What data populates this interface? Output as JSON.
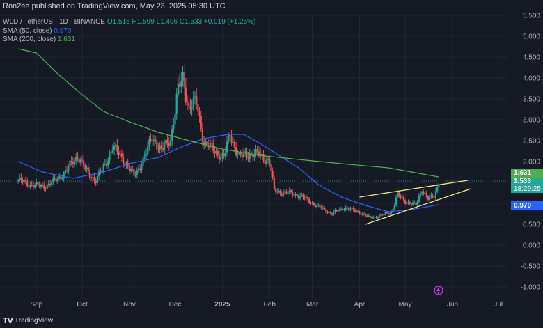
{
  "header": {
    "publisher": "Ron2ee published on TradingView.com, May 23, 2025 05:30 UTC"
  },
  "legend": {
    "symbol": "WLD / TetherUS · 1D · BINANCE",
    "o": "O1.515",
    "h": "H1.599",
    "l": "L1.496",
    "c": "C1.533",
    "change": "+0.019 (+1.25%)",
    "sma50_label": "SMA (50, close)",
    "sma50_value": "0.970",
    "sma200_label": "SMA (200, close)",
    "sma200_value": "1.631"
  },
  "badges": {
    "sma200": "1.631",
    "price": "1.533",
    "countdown": "18:29:25",
    "sma50": "0.970"
  },
  "footer": {
    "logo_text": "TradingView"
  },
  "colors": {
    "background": "#161a25",
    "up": "#26a69a",
    "down": "#ef5350",
    "sma50": "#2962ff",
    "sma200": "#4caf50",
    "trendline": "#f0e68c"
  },
  "chart_data": {
    "type": "candlestick",
    "symbol": "WLD / TetherUS",
    "interval": "1D",
    "ylim": [
      -1.2,
      5.6
    ],
    "y_ticks": [
      "5.500",
      "5.000",
      "4.500",
      "4.000",
      "3.500",
      "3.000",
      "2.500",
      "2.000",
      "1.500",
      "1.000",
      "0.500",
      "0.000",
      "-0.500",
      "-1.000"
    ],
    "x_ticks": [
      "Sep",
      "Oct",
      "Nov",
      "Dec",
      "2025",
      "Feb",
      "Mar",
      "Apr",
      "May",
      "Jun",
      "Jul"
    ],
    "close_points": [
      [
        "2024-08-20",
        1.55
      ],
      [
        "2024-08-28",
        1.45
      ],
      [
        "2024-09-05",
        1.4
      ],
      [
        "2024-09-12",
        1.5
      ],
      [
        "2024-09-20",
        1.75
      ],
      [
        "2024-09-28",
        2.15
      ],
      [
        "2024-10-03",
        1.8
      ],
      [
        "2024-10-10",
        1.55
      ],
      [
        "2024-10-15",
        1.85
      ],
      [
        "2024-10-21",
        2.35
      ],
      [
        "2024-10-28",
        2.05
      ],
      [
        "2024-11-04",
        1.65
      ],
      [
        "2024-11-11",
        2.1
      ],
      [
        "2024-11-16",
        2.6
      ],
      [
        "2024-11-22",
        2.25
      ],
      [
        "2024-11-28",
        2.55
      ],
      [
        "2024-12-03",
        3.7
      ],
      [
        "2024-12-06",
        4.0
      ],
      [
        "2024-12-10",
        3.3
      ],
      [
        "2024-12-15",
        3.4
      ],
      [
        "2024-12-20",
        2.45
      ],
      [
        "2024-12-27",
        2.25
      ],
      [
        "2025-01-02",
        2.1
      ],
      [
        "2025-01-06",
        2.65
      ],
      [
        "2025-01-12",
        2.1
      ],
      [
        "2025-01-19",
        2.2
      ],
      [
        "2025-01-26",
        2.15
      ],
      [
        "2025-02-01",
        2.0
      ],
      [
        "2025-02-04",
        1.3
      ],
      [
        "2025-02-12",
        1.25
      ],
      [
        "2025-02-20",
        1.2
      ],
      [
        "2025-02-27",
        1.05
      ],
      [
        "2025-03-06",
        0.9
      ],
      [
        "2025-03-14",
        0.75
      ],
      [
        "2025-03-22",
        0.9
      ],
      [
        "2025-03-31",
        0.8
      ],
      [
        "2025-04-07",
        0.66
      ],
      [
        "2025-04-15",
        0.7
      ],
      [
        "2025-04-22",
        0.8
      ],
      [
        "2025-04-26",
        1.2
      ],
      [
        "2025-05-01",
        1.05
      ],
      [
        "2025-05-08",
        0.95
      ],
      [
        "2025-05-12",
        1.35
      ],
      [
        "2025-05-16",
        1.1
      ],
      [
        "2025-05-20",
        1.15
      ],
      [
        "2025-05-23",
        1.533
      ]
    ],
    "series": [
      {
        "name": "SMA (50, close)",
        "values": [
          [
            "2024-08-20",
            2.0
          ],
          [
            "2024-09-05",
            1.75
          ],
          [
            "2024-09-25",
            1.6
          ],
          [
            "2024-10-15",
            1.75
          ],
          [
            "2024-11-01",
            1.95
          ],
          [
            "2024-11-20",
            2.1
          ],
          [
            "2024-12-05",
            2.35
          ],
          [
            "2024-12-20",
            2.55
          ],
          [
            "2025-01-05",
            2.65
          ],
          [
            "2025-01-15",
            2.65
          ],
          [
            "2025-01-25",
            2.45
          ],
          [
            "2025-02-05",
            2.2
          ],
          [
            "2025-02-20",
            1.85
          ],
          [
            "2025-03-05",
            1.45
          ],
          [
            "2025-03-20",
            1.15
          ],
          [
            "2025-04-05",
            0.95
          ],
          [
            "2025-04-20",
            0.8
          ],
          [
            "2025-05-05",
            0.85
          ],
          [
            "2025-05-23",
            0.97
          ]
        ]
      },
      {
        "name": "SMA (200, close)",
        "values": [
          [
            "2024-08-20",
            4.7
          ],
          [
            "2024-09-01",
            4.6
          ],
          [
            "2024-09-15",
            4.1
          ],
          [
            "2024-10-01",
            3.6
          ],
          [
            "2024-10-15",
            3.2
          ],
          [
            "2024-11-01",
            2.95
          ],
          [
            "2024-11-20",
            2.7
          ],
          [
            "2024-12-10",
            2.5
          ],
          [
            "2025-01-01",
            2.3
          ],
          [
            "2025-01-25",
            2.15
          ],
          [
            "2025-02-20",
            2.05
          ],
          [
            "2025-03-20",
            1.95
          ],
          [
            "2025-04-20",
            1.85
          ],
          [
            "2025-05-23",
            1.631
          ]
        ]
      }
    ],
    "trendlines": [
      {
        "from": [
          "2025-04-01",
          1.15
        ],
        "to": [
          "2025-06-11",
          1.55
        ]
      },
      {
        "from": [
          "2025-04-05",
          0.5
        ],
        "to": [
          "2025-06-13",
          1.35
        ]
      }
    ],
    "last_price": 1.533
  }
}
